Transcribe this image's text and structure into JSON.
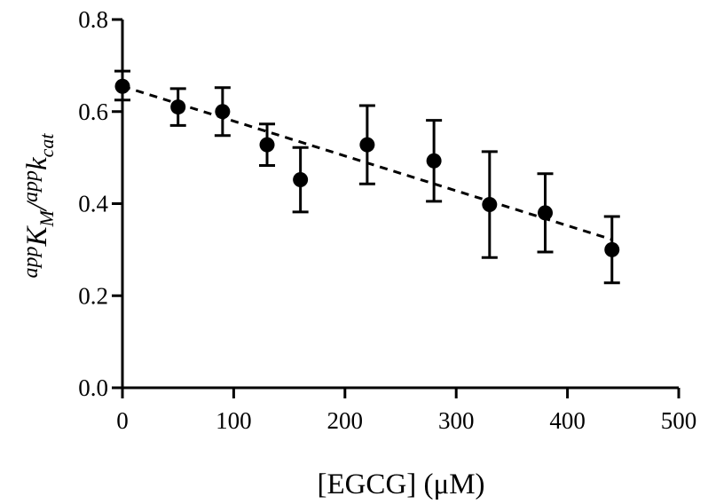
{
  "chart_data": {
    "type": "scatter",
    "xlabel": "[EGCG] (μM)",
    "ylabel": {
      "part1_sup": "app",
      "part1_main": "K",
      "part1_sub": "M",
      "slash": "/",
      "part2_sup": "app",
      "part2_main": "k",
      "part2_sub": "cat"
    },
    "xlim": [
      0,
      500
    ],
    "ylim": [
      0,
      0.8
    ],
    "xticks": [
      0,
      100,
      200,
      300,
      400,
      500
    ],
    "yticks": [
      0.0,
      0.2,
      0.4,
      0.6,
      0.8
    ],
    "xtick_labels": [
      "0",
      "100",
      "200",
      "300",
      "400",
      "500"
    ],
    "ytick_labels": [
      "0.0",
      "0.2",
      "0.4",
      "0.6",
      "0.8"
    ],
    "grid": false,
    "series": [
      {
        "x": [
          0,
          50,
          90,
          130,
          160,
          220,
          280,
          330,
          380,
          440
        ],
        "y": [
          0.655,
          0.61,
          0.6,
          0.528,
          0.452,
          0.528,
          0.493,
          0.398,
          0.38,
          0.3
        ],
        "y_err_low": [
          0.03,
          0.04,
          0.052,
          0.045,
          0.07,
          0.085,
          0.088,
          0.115,
          0.085,
          0.072
        ],
        "y_err_high": [
          0.033,
          0.04,
          0.052,
          0.045,
          0.07,
          0.085,
          0.088,
          0.115,
          0.085,
          0.072
        ]
      }
    ],
    "fit_line": {
      "style": "dashed",
      "x": [
        0,
        440
      ],
      "y": [
        0.655,
        0.322
      ]
    }
  }
}
